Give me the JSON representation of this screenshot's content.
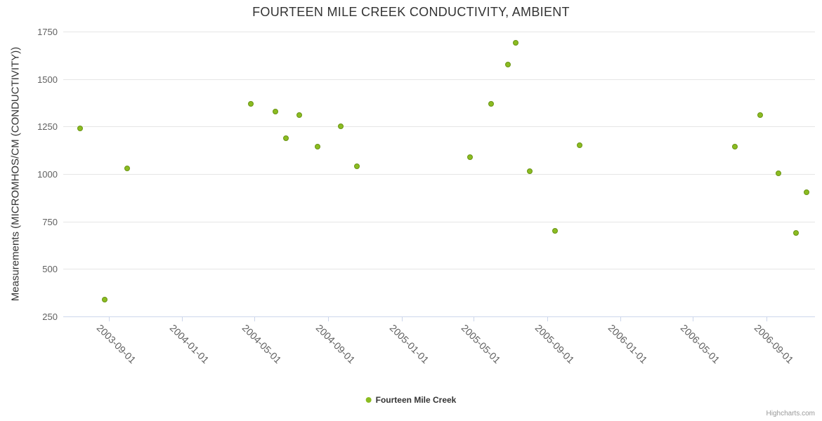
{
  "chart_data": {
    "type": "scatter",
    "title": "FOURTEEN MILE CREEK CONDUCTIVITY, AMBIENT",
    "xlabel": "",
    "ylabel": "Measurements (MICROMHOS/CM (CONDUCTIVITY))",
    "ylim": [
      250,
      1750
    ],
    "xlim": [
      "2003-06-17",
      "2006-11-21"
    ],
    "y_ticks": [
      250,
      500,
      750,
      1000,
      1250,
      1500,
      1750
    ],
    "x_ticks": [
      "2003-09-01",
      "2004-01-01",
      "2004-05-01",
      "2004-09-01",
      "2005-01-01",
      "2005-05-01",
      "2005-09-01",
      "2006-01-01",
      "2006-05-01",
      "2006-09-01"
    ],
    "x_tick_label_rotation": 45,
    "grid": true,
    "legend_position": "bottom",
    "series": [
      {
        "name": "Fourteen Mile Creek",
        "color": "#8bbc21",
        "marker_border_color": "#6a9415",
        "points": [
          {
            "x": "2003-07-15",
            "y": 1240
          },
          {
            "x": "2003-08-25",
            "y": 340
          },
          {
            "x": "2003-10-01",
            "y": 1030
          },
          {
            "x": "2004-04-25",
            "y": 1370
          },
          {
            "x": "2004-06-05",
            "y": 1330
          },
          {
            "x": "2004-06-22",
            "y": 1190
          },
          {
            "x": "2004-07-14",
            "y": 1310
          },
          {
            "x": "2004-08-14",
            "y": 1145
          },
          {
            "x": "2004-09-22",
            "y": 1250
          },
          {
            "x": "2004-10-18",
            "y": 1040
          },
          {
            "x": "2005-04-25",
            "y": 1090
          },
          {
            "x": "2005-05-30",
            "y": 1370
          },
          {
            "x": "2005-06-27",
            "y": 1575
          },
          {
            "x": "2005-07-10",
            "y": 1690
          },
          {
            "x": "2005-08-03",
            "y": 1015
          },
          {
            "x": "2005-09-14",
            "y": 700
          },
          {
            "x": "2005-10-25",
            "y": 1150
          },
          {
            "x": "2006-07-10",
            "y": 1145
          },
          {
            "x": "2006-08-22",
            "y": 1310
          },
          {
            "x": "2006-09-21",
            "y": 1005
          },
          {
            "x": "2006-10-20",
            "y": 690
          },
          {
            "x": "2006-11-07",
            "y": 905
          }
        ]
      }
    ]
  },
  "credits": {
    "text": "Highcharts.com"
  }
}
